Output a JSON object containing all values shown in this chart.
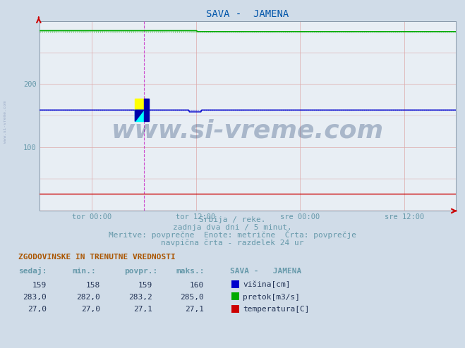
{
  "title": "SAVA -  JAMENA",
  "title_color": "#0055aa",
  "bg_color": "#d0dce8",
  "plot_bg_color": "#e8eef4",
  "xlabel_ticks": [
    "tor 00:00",
    "tor 12:00",
    "sre 00:00",
    "sre 12:00"
  ],
  "ylim_min": 0,
  "ylim_max": 300,
  "yticks": [
    100,
    200
  ],
  "n_points": 576,
  "visina_value": 159,
  "visina_min": 158,
  "visina_povpr": 159,
  "visina_maks": 160,
  "pretok_value": 283.0,
  "pretok_min": 282.0,
  "pretok_povpr": 283.2,
  "pretok_maks": 285.0,
  "temp_value": 27.0,
  "temp_min": 27.0,
  "temp_povpr": 27.1,
  "temp_maks": 27.1,
  "visina_color": "#0000cc",
  "pretok_color": "#00aa00",
  "temp_color": "#cc0000",
  "watermark": "www.si-vreme.com",
  "watermark_color": "#1a3a6a",
  "subtitle1": "Srbija / reke.",
  "subtitle2": "zadnja dva dni / 5 minut.",
  "subtitle3": "Meritve: povprečne  Enote: metrične  Črta: povprečje",
  "subtitle4": "navpična črta - razdelek 24 ur",
  "table_title": "ZGODOVINSKE IN TRENUTNE VREDNOSTI",
  "col_headers": [
    "sedaj:",
    "min.:",
    "povpr.:",
    "maks.:",
    "SAVA -   JAMENA"
  ],
  "row1_vals": [
    "159",
    "158",
    "159",
    "160"
  ],
  "row2_vals": [
    "283,0",
    "282,0",
    "283,2",
    "285,0"
  ],
  "row3_vals": [
    "27,0",
    "27,0",
    "27,1",
    "27,1"
  ],
  "row1_label": "višina[cm]",
  "row2_label": "pretok[m3/s]",
  "row3_label": "temperatura[C]",
  "text_color": "#6699aa",
  "table_val_color": "#223355",
  "grid_color": "#ddaaaa",
  "side_text": "www.si-vreme.com"
}
